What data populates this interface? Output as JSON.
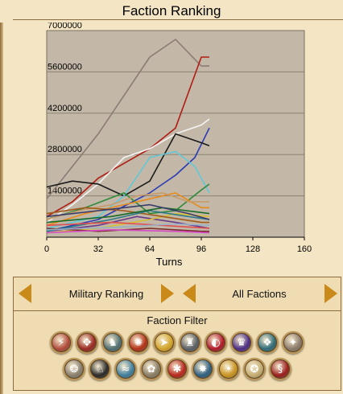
{
  "window": {
    "title": "Faction Ranking"
  },
  "ranking": {
    "type_label": "Military Ranking",
    "faction_label": "All Factions"
  },
  "filter": {
    "title": "Faction Filter",
    "factions": [
      {
        "icon": "lightning-emblem-icon",
        "color": "#b04a3a",
        "glyph": "⚡"
      },
      {
        "icon": "knot-emblem-icon",
        "color": "#9a2a22",
        "glyph": "✥"
      },
      {
        "icon": "horses-emblem-icon",
        "color": "#4f6f73",
        "glyph": "♞"
      },
      {
        "icon": "sunburst-emblem-icon",
        "color": "#b33218",
        "glyph": "✺"
      },
      {
        "icon": "bird-emblem-icon",
        "color": "#d3a42a",
        "glyph": "➤"
      },
      {
        "icon": "tower-emblem-icon",
        "color": "#5a6068",
        "glyph": "♜"
      },
      {
        "icon": "crescent-emblem-icon",
        "color": "#b01a2a",
        "glyph": "◐"
      },
      {
        "icon": "crown-emblem-icon",
        "color": "#4c2e86",
        "glyph": "♛"
      },
      {
        "icon": "wings-emblem-icon",
        "color": "#2e6c78",
        "glyph": "❖"
      },
      {
        "icon": "dragon-emblem-icon",
        "color": "#8a7a6a",
        "glyph": "✦"
      },
      {
        "icon": "triskelion-emblem-icon",
        "color": "#8a8070",
        "glyph": "❂"
      },
      {
        "icon": "horse-emblem-icon",
        "color": "#2a2a2a",
        "glyph": "♘"
      },
      {
        "icon": "wave-emblem-icon",
        "color": "#3f7e9e",
        "glyph": "≈"
      },
      {
        "icon": "boar-emblem-icon",
        "color": "#8a7d66",
        "glyph": "✿"
      },
      {
        "icon": "cauldron-emblem-icon",
        "color": "#b8281e",
        "glyph": "✱"
      },
      {
        "icon": "eagle-emblem-icon",
        "color": "#2f5f82",
        "glyph": "✸"
      },
      {
        "icon": "sun-emblem-icon",
        "color": "#c89422",
        "glyph": "☀"
      },
      {
        "icon": "lion-emblem-icon",
        "color": "#c4ad72",
        "glyph": "✪"
      },
      {
        "icon": "serpent-emblem-icon",
        "color": "#9a1e1e",
        "glyph": "§"
      }
    ]
  },
  "colors": {
    "plot_bg": "#c3b8a7",
    "panel_bg": "#efdcb2",
    "arrow": "#c98a1a"
  },
  "chart_data": {
    "type": "line",
    "title": "",
    "xlabel": "Turns",
    "ylabel": "",
    "xlim": [
      0,
      160
    ],
    "ylim": [
      0,
      7000000
    ],
    "xticks": [
      0,
      32,
      64,
      96,
      128,
      160
    ],
    "yticks": [
      1400000,
      2800000,
      4200000,
      5600000,
      7000000
    ],
    "ytick_labels": [
      "1400000",
      "2800000",
      "4200000",
      "5600000",
      "7000000"
    ],
    "grid": "horizontal",
    "series": [
      {
        "color": "#8c7b74",
        "points": [
          [
            0,
            1300000
          ],
          [
            16,
            2400000
          ],
          [
            32,
            3500000
          ],
          [
            48,
            4800000
          ],
          [
            64,
            6100000
          ],
          [
            80,
            6700000
          ],
          [
            96,
            5800000
          ],
          [
            101,
            5800000
          ]
        ]
      },
      {
        "color": "#b01c14",
        "points": [
          [
            0,
            700000
          ],
          [
            16,
            1200000
          ],
          [
            32,
            2000000
          ],
          [
            48,
            2500000
          ],
          [
            64,
            3000000
          ],
          [
            80,
            3700000
          ],
          [
            96,
            6100000
          ],
          [
            101,
            6100000
          ]
        ]
      },
      {
        "color": "#f4f4f4",
        "points": [
          [
            0,
            500000
          ],
          [
            16,
            1100000
          ],
          [
            32,
            1800000
          ],
          [
            48,
            2700000
          ],
          [
            64,
            3000000
          ],
          [
            80,
            3500000
          ],
          [
            96,
            3800000
          ],
          [
            101,
            4000000
          ]
        ]
      },
      {
        "color": "#2a3ab4",
        "points": [
          [
            0,
            200000
          ],
          [
            32,
            600000
          ],
          [
            64,
            1500000
          ],
          [
            80,
            2100000
          ],
          [
            92,
            2700000
          ],
          [
            101,
            3700000
          ]
        ]
      },
      {
        "color": "#1a1a1a",
        "points": [
          [
            0,
            1700000
          ],
          [
            16,
            1900000
          ],
          [
            32,
            1800000
          ],
          [
            48,
            1400000
          ],
          [
            64,
            1900000
          ],
          [
            80,
            3500000
          ],
          [
            96,
            3200000
          ],
          [
            101,
            3100000
          ]
        ]
      },
      {
        "color": "#5fc8d8",
        "points": [
          [
            0,
            300000
          ],
          [
            32,
            700000
          ],
          [
            48,
            1400000
          ],
          [
            64,
            2700000
          ],
          [
            80,
            2900000
          ],
          [
            92,
            2400000
          ],
          [
            101,
            1500000
          ]
        ]
      },
      {
        "color": "#2e8a3a",
        "points": [
          [
            0,
            600000
          ],
          [
            24,
            1000000
          ],
          [
            48,
            1500000
          ],
          [
            64,
            800000
          ],
          [
            80,
            900000
          ],
          [
            96,
            1600000
          ],
          [
            101,
            1800000
          ]
        ]
      },
      {
        "color": "#e68a1c",
        "points": [
          [
            0,
            400000
          ],
          [
            24,
            800000
          ],
          [
            48,
            1100000
          ],
          [
            64,
            1300000
          ],
          [
            80,
            1500000
          ],
          [
            96,
            1000000
          ],
          [
            101,
            1000000
          ]
        ]
      },
      {
        "color": "#c89a6a",
        "points": [
          [
            0,
            600000
          ],
          [
            20,
            900000
          ],
          [
            40,
            1100000
          ],
          [
            56,
            1400000
          ],
          [
            72,
            1500000
          ],
          [
            88,
            1200000
          ],
          [
            101,
            1200000
          ]
        ]
      },
      {
        "color": "#6a3a8a",
        "points": [
          [
            0,
            200000
          ],
          [
            32,
            400000
          ],
          [
            56,
            700000
          ],
          [
            80,
            500000
          ],
          [
            101,
            300000
          ]
        ]
      },
      {
        "color": "#d8c030",
        "points": [
          [
            0,
            150000
          ],
          [
            32,
            300000
          ],
          [
            64,
            600000
          ],
          [
            80,
            800000
          ],
          [
            101,
            700000
          ]
        ]
      },
      {
        "color": "#a05a1a",
        "points": [
          [
            0,
            800000
          ],
          [
            24,
            1000000
          ],
          [
            48,
            900000
          ],
          [
            72,
            700000
          ],
          [
            96,
            500000
          ],
          [
            101,
            500000
          ]
        ]
      },
      {
        "color": "#2a7a8a",
        "points": [
          [
            0,
            200000
          ],
          [
            40,
            600000
          ],
          [
            64,
            900000
          ],
          [
            88,
            700000
          ],
          [
            101,
            600000
          ]
        ]
      },
      {
        "color": "#7a2a2a",
        "points": [
          [
            0,
            300000
          ],
          [
            32,
            200000
          ],
          [
            64,
            300000
          ],
          [
            96,
            200000
          ],
          [
            101,
            200000
          ]
        ]
      },
      {
        "color": "#1a6a2a",
        "points": [
          [
            0,
            500000
          ],
          [
            40,
            700000
          ],
          [
            72,
            1000000
          ],
          [
            101,
            800000
          ]
        ]
      },
      {
        "color": "#e05050",
        "points": [
          [
            0,
            400000
          ],
          [
            40,
            500000
          ],
          [
            72,
            400000
          ],
          [
            101,
            300000
          ]
        ]
      },
      {
        "color": "#9ab0c8",
        "points": [
          [
            0,
            250000
          ],
          [
            48,
            350000
          ],
          [
            80,
            450000
          ],
          [
            101,
            400000
          ]
        ]
      },
      {
        "color": "#3a3a6a",
        "points": [
          [
            0,
            700000
          ],
          [
            32,
            900000
          ],
          [
            64,
            1100000
          ],
          [
            88,
            800000
          ],
          [
            101,
            600000
          ]
        ]
      },
      {
        "color": "#d84ac8",
        "points": [
          [
            0,
            150000
          ],
          [
            40,
            250000
          ],
          [
            80,
            200000
          ],
          [
            101,
            150000
          ]
        ]
      }
    ]
  }
}
